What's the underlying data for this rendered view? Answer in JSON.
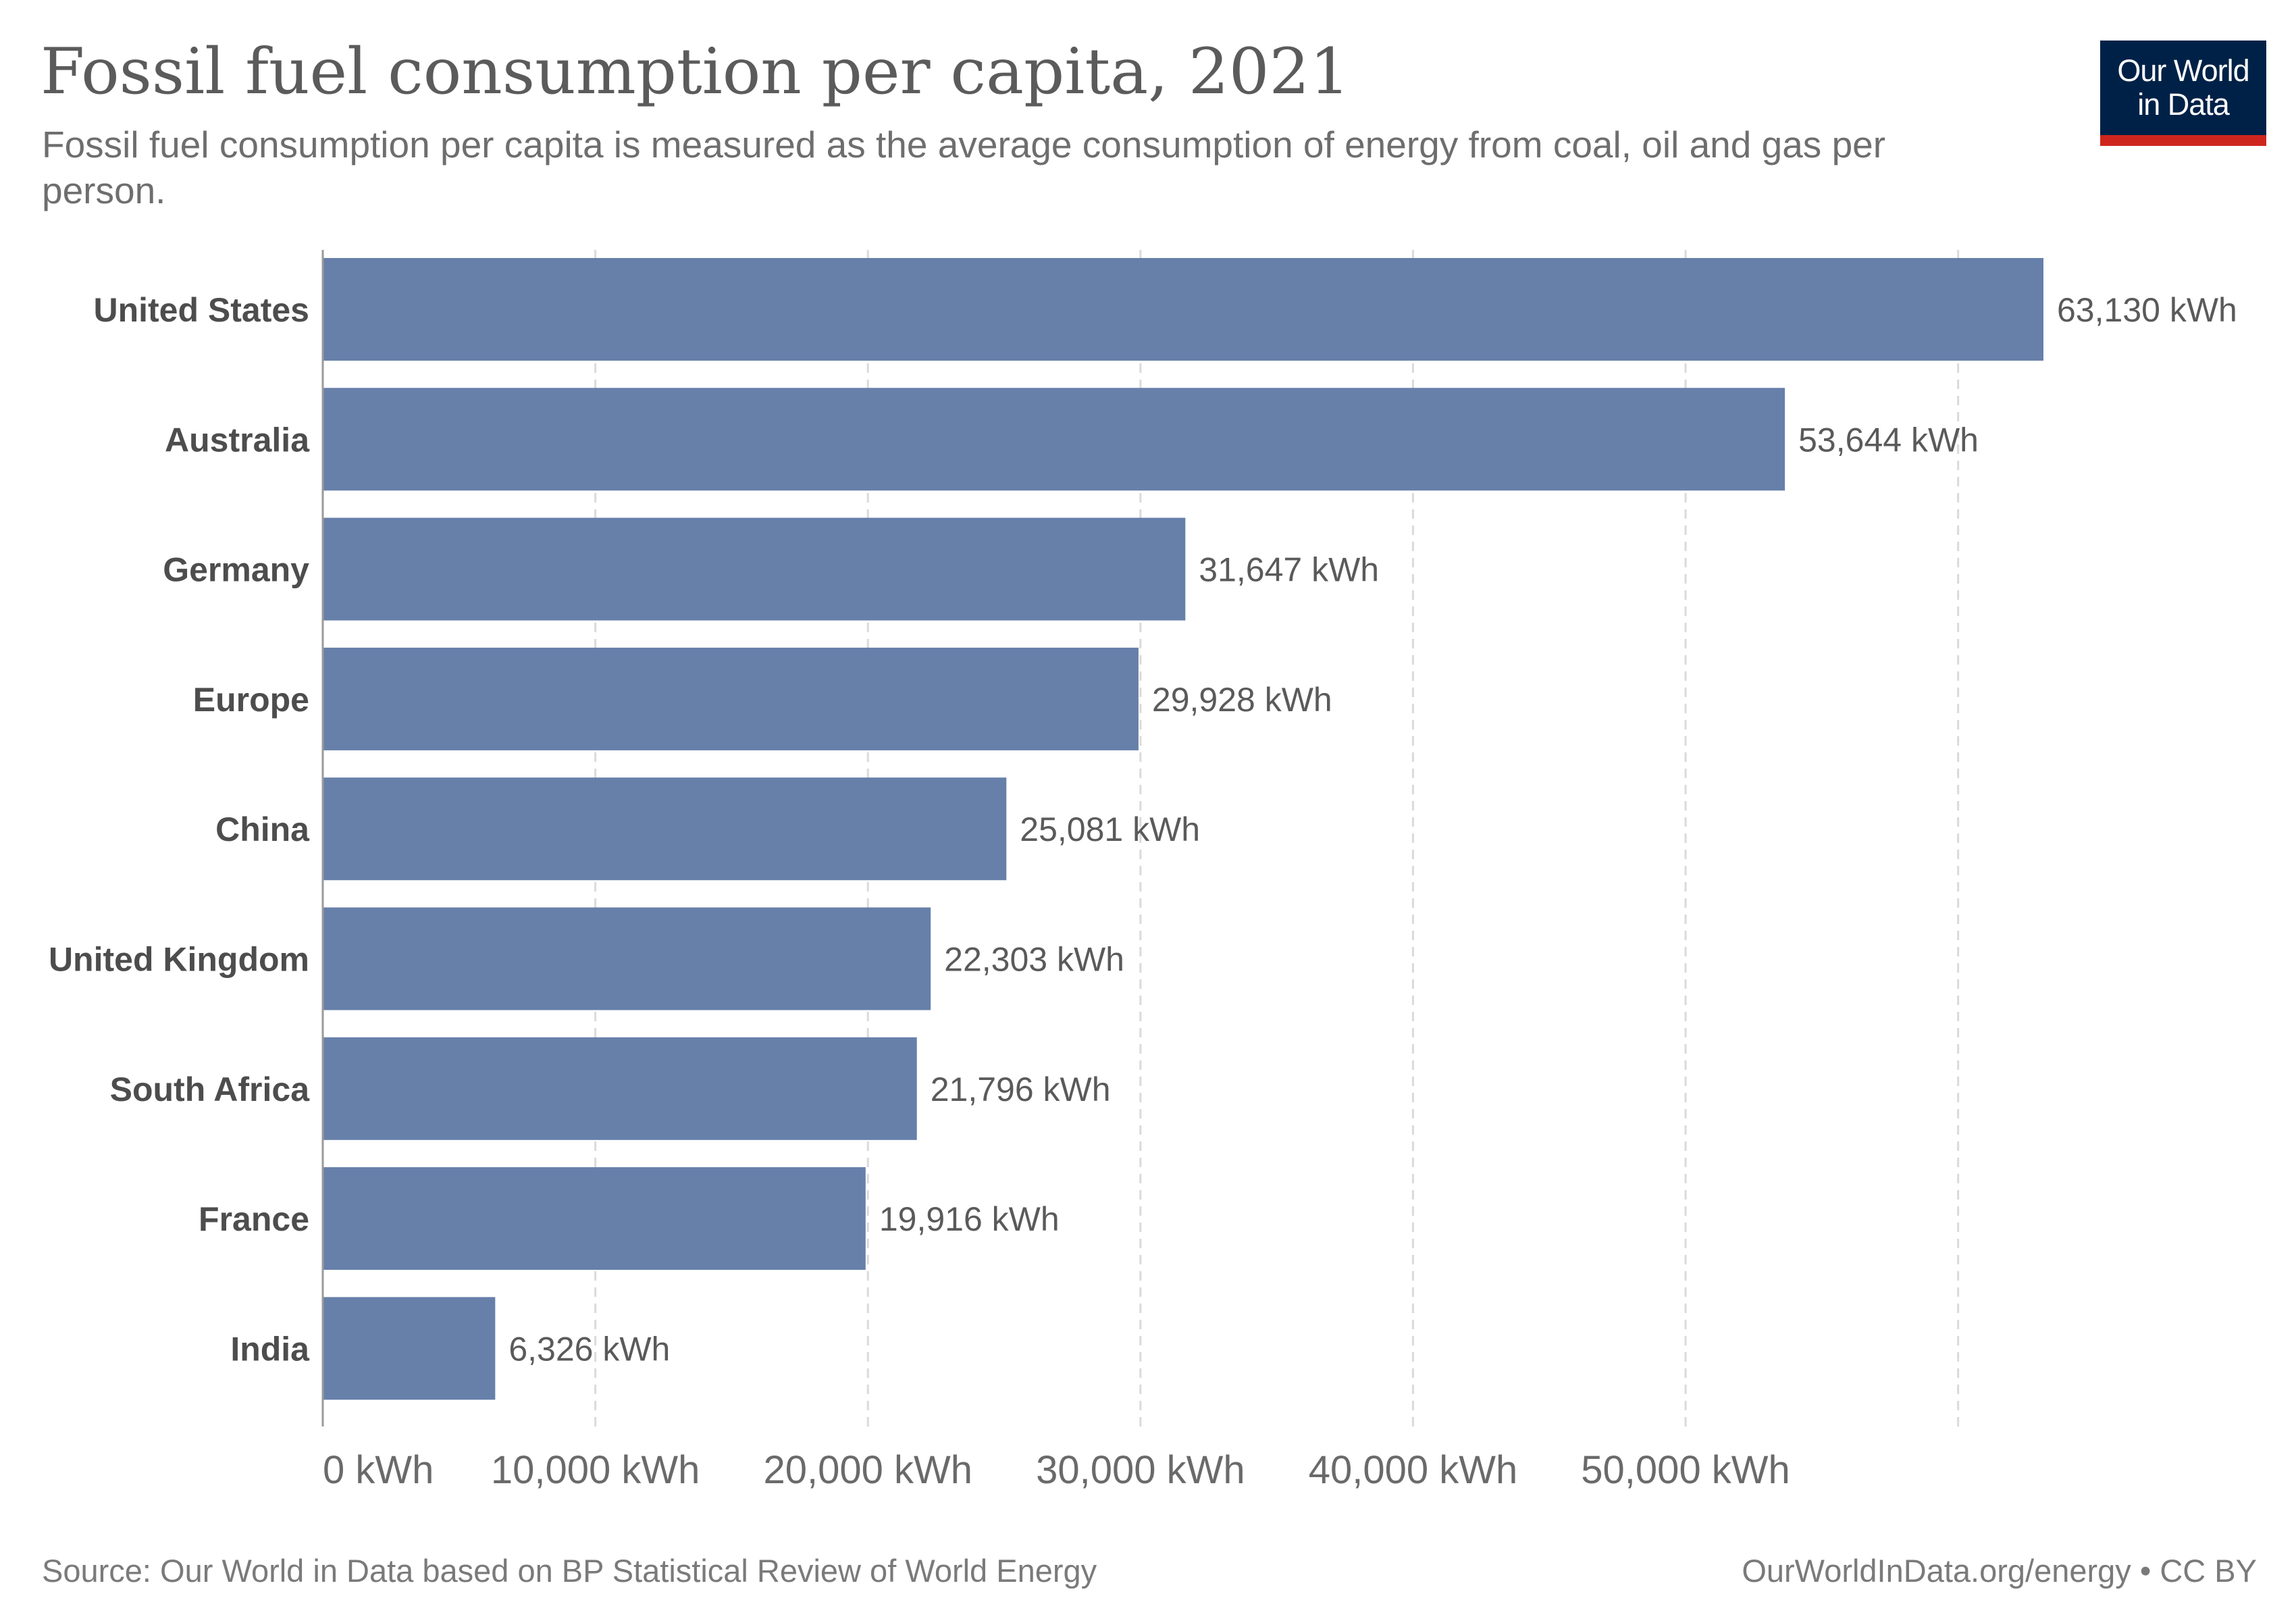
{
  "header": {
    "title": "Fossil fuel consumption per capita, 2021",
    "subtitle": "Fossil fuel consumption per capita is measured as the average consumption of energy from coal, oil and gas per person."
  },
  "logo": {
    "line1": "Our World",
    "line2": "in Data",
    "bg_color": "#002147",
    "accent_color": "#ce261e"
  },
  "footer": {
    "source": "Source: Our World in Data based on BP Statistical Review of World Energy",
    "credit": "OurWorldInData.org/energy • CC BY"
  },
  "chart_data": {
    "type": "bar",
    "orientation": "horizontal",
    "title": "Fossil fuel consumption per capita, 2021",
    "categories": [
      "United States",
      "Australia",
      "Germany",
      "Europe",
      "China",
      "United Kingdom",
      "South Africa",
      "France",
      "India"
    ],
    "values": [
      63130,
      53644,
      31647,
      29928,
      25081,
      22303,
      21796,
      19916,
      6326
    ],
    "value_labels": [
      "63,130 kWh",
      "53,644 kWh",
      "31,647 kWh",
      "29,928 kWh",
      "25,081 kWh",
      "22,303 kWh",
      "21,796 kWh",
      "19,916 kWh",
      "6,326 kWh"
    ],
    "unit": "kWh",
    "xlim": [
      0,
      63130
    ],
    "x_ticks": [
      0,
      10000,
      20000,
      30000,
      40000,
      50000,
      60000
    ],
    "x_tick_labels": [
      "0 kWh",
      "10,000 kWh",
      "20,000 kWh",
      "30,000 kWh",
      "40,000 kWh",
      "50,000 kWh",
      ""
    ],
    "grid": "vertical dashed",
    "legend": "none",
    "bar_color": "#6780aa"
  }
}
